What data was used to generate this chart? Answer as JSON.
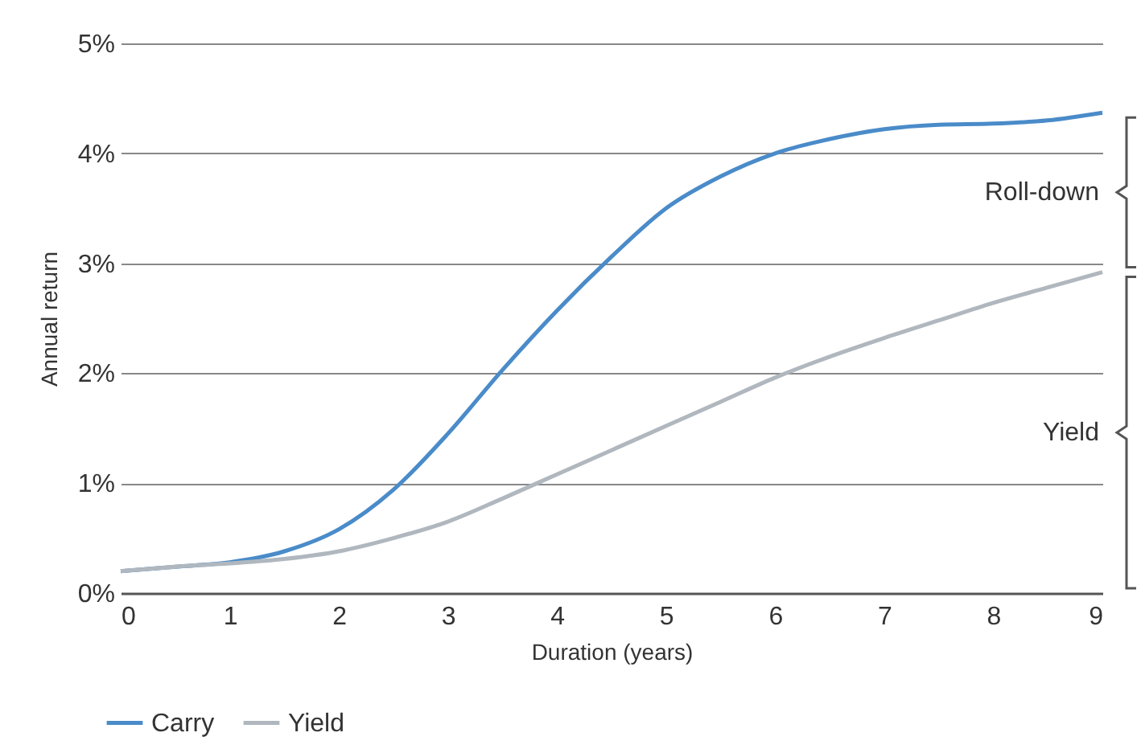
{
  "chart_data": {
    "type": "line",
    "xlabel": "Duration (years)",
    "ylabel": "Annual return",
    "x": [
      0,
      0.5,
      1,
      1.5,
      2,
      2.5,
      3,
      3.5,
      4,
      4.5,
      5,
      5.5,
      6,
      6.5,
      7,
      7.5,
      8,
      8.5,
      9
    ],
    "series": [
      {
        "name": "Carry",
        "color": "#4a8bc9",
        "values": [
          0.2,
          0.24,
          0.28,
          0.38,
          0.58,
          0.94,
          1.45,
          2.03,
          2.57,
          3.06,
          3.5,
          3.79,
          4.0,
          4.13,
          4.22,
          4.26,
          4.27,
          4.3,
          4.37
        ]
      },
      {
        "name": "Yield",
        "color": "#b0b7be",
        "values": [
          0.2,
          0.24,
          0.27,
          0.31,
          0.38,
          0.5,
          0.65,
          0.86,
          1.08,
          1.3,
          1.52,
          1.74,
          1.96,
          2.15,
          2.32,
          2.48,
          2.64,
          2.78,
          2.92
        ]
      }
    ],
    "xlim": [
      0,
      9
    ],
    "xticks": [
      0,
      1,
      2,
      3,
      4,
      5,
      6,
      7,
      8,
      9
    ],
    "ylim": [
      0,
      5
    ],
    "yticks": [
      {
        "value": 0,
        "label": "0%"
      },
      {
        "value": 1,
        "label": "1%"
      },
      {
        "value": 2,
        "label": "2%"
      },
      {
        "value": 3,
        "label": "3%"
      },
      {
        "value": 4,
        "label": "4%"
      },
      {
        "value": 5,
        "label": "5%"
      }
    ],
    "grid": "y",
    "legend": "bottom",
    "marker": "none",
    "line_style": "solid",
    "annotations": [
      "Roll-down",
      "Yield"
    ]
  }
}
